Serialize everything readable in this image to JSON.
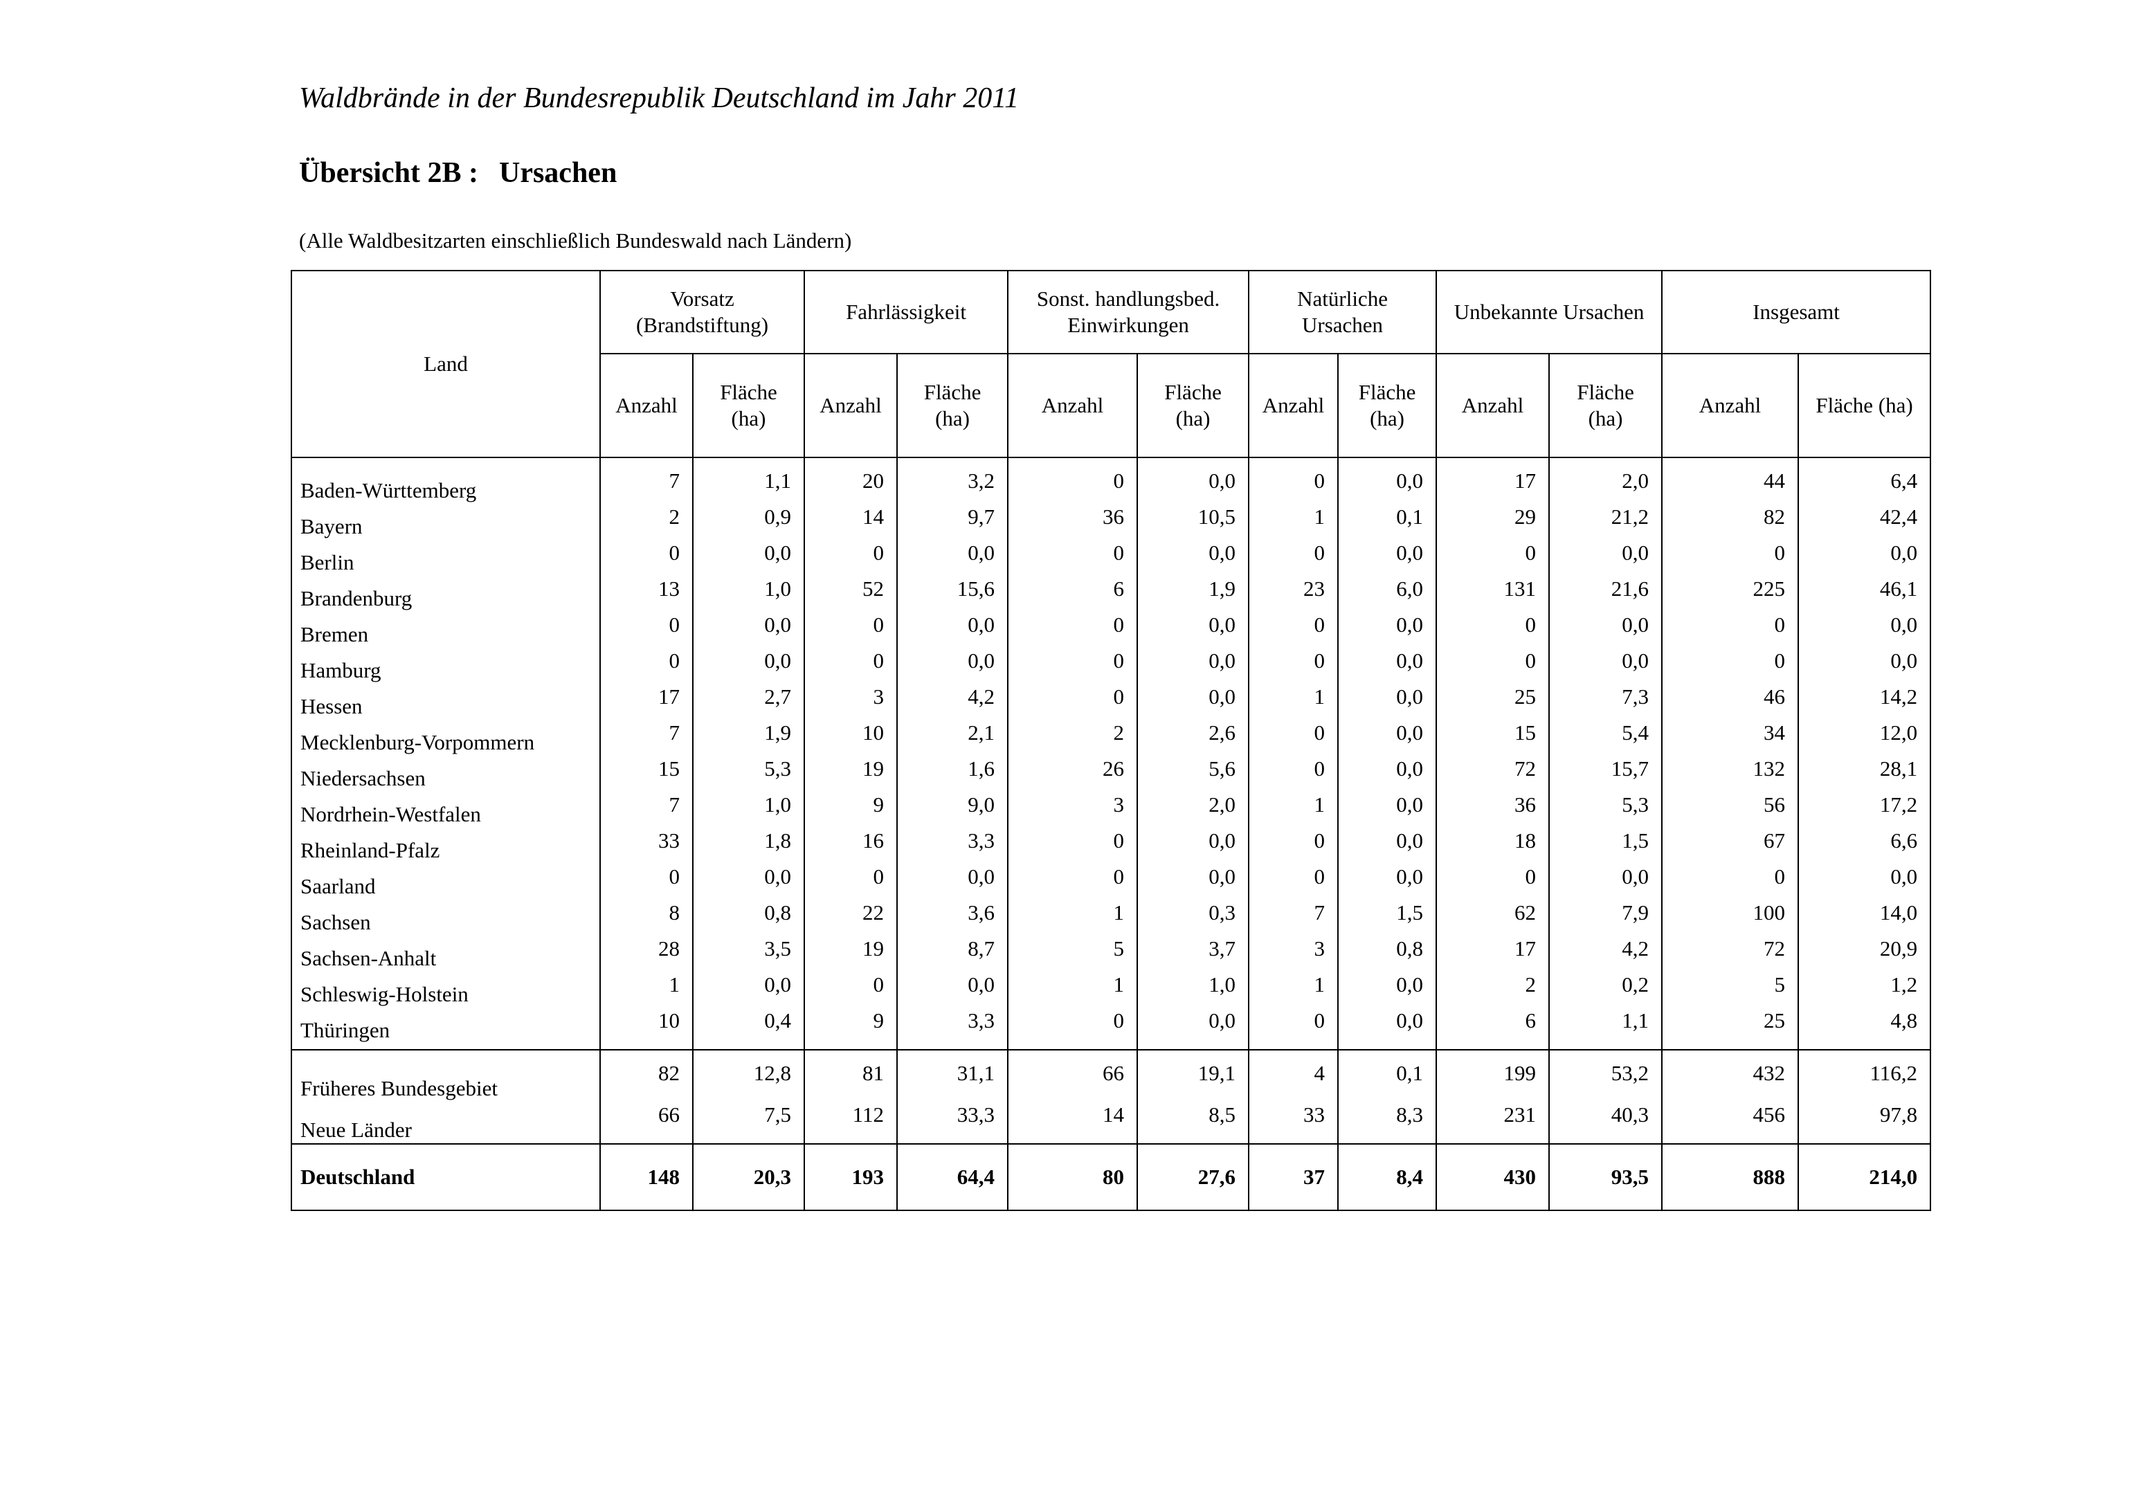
{
  "title": "Waldbrände in der Bundesrepublik Deutschland im Jahr 2011",
  "subtitle_label": "Übersicht 2B :",
  "subtitle_value": "Ursachen",
  "note": "(Alle Waldbesitzarten einschließlich Bundeswald nach Ländern)",
  "header": {
    "land": "Land",
    "groups": [
      "Vorsatz (Brandstiftung)",
      "Fahrlässigkeit",
      "Sonst. handlungsbed. Einwirkungen",
      "Natürliche Ursachen",
      "Unbekannte Ursachen",
      "Insgesamt"
    ],
    "anzahl": "Anzahl",
    "flaeche": "Fläche (ha)"
  },
  "rows": [
    {
      "land": "Baden-Württemberg",
      "v": [
        "7",
        "1,1",
        "20",
        "3,2",
        "0",
        "0,0",
        "0",
        "0,0",
        "17",
        "2,0",
        "44",
        "6,4"
      ]
    },
    {
      "land": "Bayern",
      "v": [
        "2",
        "0,9",
        "14",
        "9,7",
        "36",
        "10,5",
        "1",
        "0,1",
        "29",
        "21,2",
        "82",
        "42,4"
      ]
    },
    {
      "land": "Berlin",
      "v": [
        "0",
        "0,0",
        "0",
        "0,0",
        "0",
        "0,0",
        "0",
        "0,0",
        "0",
        "0,0",
        "0",
        "0,0"
      ]
    },
    {
      "land": "Brandenburg",
      "v": [
        "13",
        "1,0",
        "52",
        "15,6",
        "6",
        "1,9",
        "23",
        "6,0",
        "131",
        "21,6",
        "225",
        "46,1"
      ]
    },
    {
      "land": "Bremen",
      "v": [
        "0",
        "0,0",
        "0",
        "0,0",
        "0",
        "0,0",
        "0",
        "0,0",
        "0",
        "0,0",
        "0",
        "0,0"
      ]
    },
    {
      "land": "Hamburg",
      "v": [
        "0",
        "0,0",
        "0",
        "0,0",
        "0",
        "0,0",
        "0",
        "0,0",
        "0",
        "0,0",
        "0",
        "0,0"
      ]
    },
    {
      "land": "Hessen",
      "v": [
        "17",
        "2,7",
        "3",
        "4,2",
        "0",
        "0,0",
        "1",
        "0,0",
        "25",
        "7,3",
        "46",
        "14,2"
      ]
    },
    {
      "land": "Mecklenburg-Vorpommern",
      "v": [
        "7",
        "1,9",
        "10",
        "2,1",
        "2",
        "2,6",
        "0",
        "0,0",
        "15",
        "5,4",
        "34",
        "12,0"
      ]
    },
    {
      "land": "Niedersachsen",
      "v": [
        "15",
        "5,3",
        "19",
        "1,6",
        "26",
        "5,6",
        "0",
        "0,0",
        "72",
        "15,7",
        "132",
        "28,1"
      ]
    },
    {
      "land": "Nordrhein-Westfalen",
      "v": [
        "7",
        "1,0",
        "9",
        "9,0",
        "3",
        "2,0",
        "1",
        "0,0",
        "36",
        "5,3",
        "56",
        "17,2"
      ]
    },
    {
      "land": "Rheinland-Pfalz",
      "v": [
        "33",
        "1,8",
        "16",
        "3,3",
        "0",
        "0,0",
        "0",
        "0,0",
        "18",
        "1,5",
        "67",
        "6,6"
      ]
    },
    {
      "land": "Saarland",
      "v": [
        "0",
        "0,0",
        "0",
        "0,0",
        "0",
        "0,0",
        "0",
        "0,0",
        "0",
        "0,0",
        "0",
        "0,0"
      ]
    },
    {
      "land": "Sachsen",
      "v": [
        "8",
        "0,8",
        "22",
        "3,6",
        "1",
        "0,3",
        "7",
        "1,5",
        "62",
        "7,9",
        "100",
        "14,0"
      ]
    },
    {
      "land": "Sachsen-Anhalt",
      "v": [
        "28",
        "3,5",
        "19",
        "8,7",
        "5",
        "3,7",
        "3",
        "0,8",
        "17",
        "4,2",
        "72",
        "20,9"
      ]
    },
    {
      "land": "Schleswig-Holstein",
      "v": [
        "1",
        "0,0",
        "0",
        "0,0",
        "1",
        "1,0",
        "1",
        "0,0",
        "2",
        "0,2",
        "5",
        "1,2"
      ]
    },
    {
      "land": "Thüringen",
      "v": [
        "10",
        "0,4",
        "9",
        "3,3",
        "0",
        "0,0",
        "0",
        "0,0",
        "6",
        "1,1",
        "25",
        "4,8"
      ]
    }
  ],
  "summary": [
    {
      "land": "Früheres Bundesgebiet",
      "v": [
        "82",
        "12,8",
        "81",
        "31,1",
        "66",
        "19,1",
        "4",
        "0,1",
        "199",
        "53,2",
        "432",
        "116,2"
      ]
    },
    {
      "land": "Neue Länder",
      "v": [
        "66",
        "7,5",
        "112",
        "33,3",
        "14",
        "8,5",
        "33",
        "8,3",
        "231",
        "40,3",
        "456",
        "97,8"
      ]
    }
  ],
  "total": {
    "land": "Deutschland",
    "v": [
      "148",
      "20,3",
      "193",
      "64,4",
      "80",
      "27,6",
      "37",
      "8,4",
      "430",
      "93,5",
      "888",
      "214,0"
    ]
  }
}
